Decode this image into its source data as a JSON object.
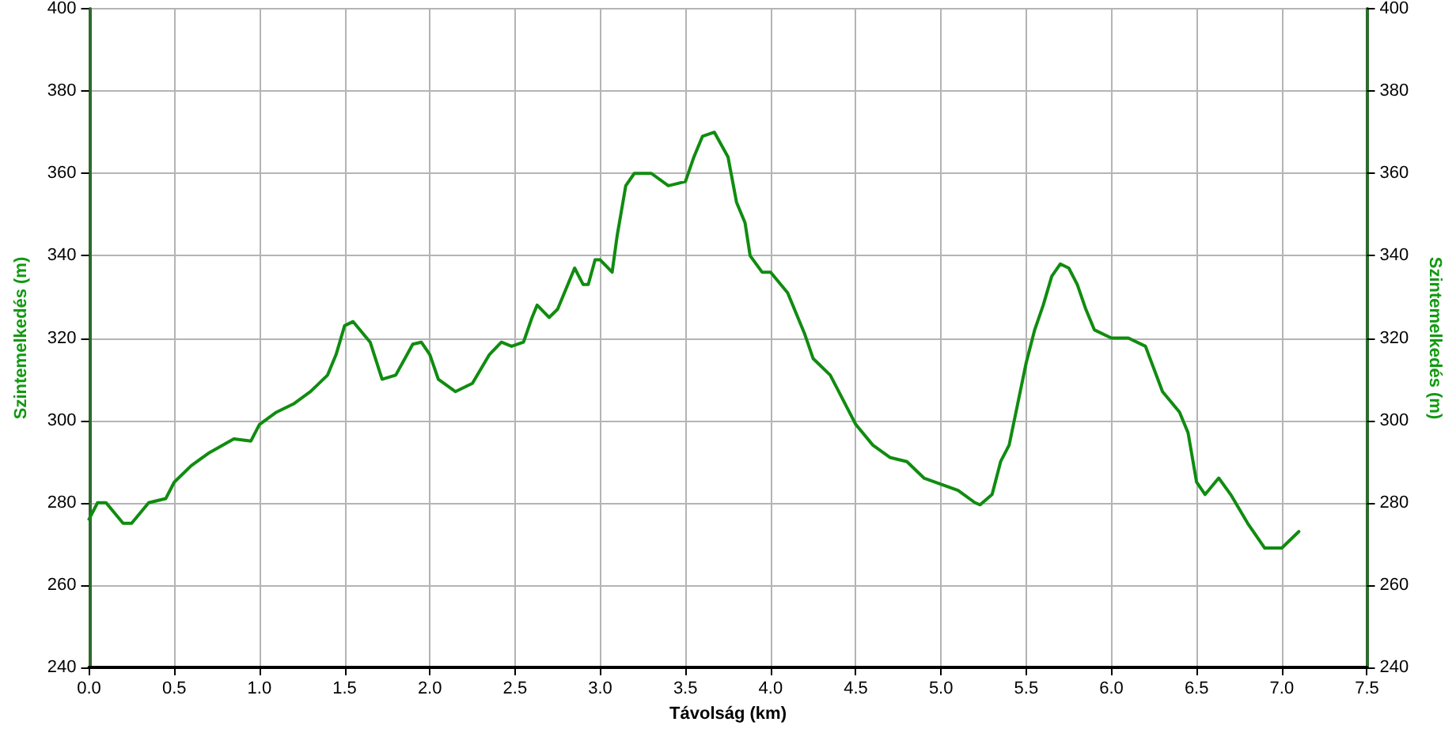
{
  "chart_data": {
    "type": "line",
    "xlabel": "Távolság (km)",
    "ylabel": "Szintemelkedés (m)",
    "y2label": "Szintemelkedés (m)",
    "xlim": [
      0,
      7.5
    ],
    "xticks": [
      {
        "value": 0,
        "label": "0.0"
      },
      {
        "value": 0.5,
        "label": "0.5"
      },
      {
        "value": 1,
        "label": "1.0"
      },
      {
        "value": 1.5,
        "label": "1.5"
      },
      {
        "value": 2,
        "label": "2.0"
      },
      {
        "value": 2.5,
        "label": "2.5"
      },
      {
        "value": 3,
        "label": "3.0"
      },
      {
        "value": 3.5,
        "label": "3.5"
      },
      {
        "value": 4,
        "label": "4.0"
      },
      {
        "value": 4.5,
        "label": "4.5"
      },
      {
        "value": 5,
        "label": "5.0"
      },
      {
        "value": 5.5,
        "label": "5.5"
      },
      {
        "value": 6,
        "label": "6.0"
      },
      {
        "value": 6.5,
        "label": "6.5"
      },
      {
        "value": 7,
        "label": "7.0"
      },
      {
        "value": 7.5,
        "label": "7.5"
      }
    ],
    "ylim": [
      240,
      400
    ],
    "yticks": [
      240,
      260,
      280,
      300,
      320,
      340,
      360,
      380,
      400
    ],
    "y2lim": [
      240,
      400
    ],
    "y2ticks": [
      240,
      260,
      280,
      300,
      320,
      340,
      360,
      380,
      400
    ],
    "grid": true,
    "marker": "none",
    "line_style": "solid",
    "series": [
      {
        "color": "#108c10",
        "x": [
          0,
          0.05,
          0.1,
          0.2,
          0.25,
          0.35,
          0.45,
          0.5,
          0.6,
          0.7,
          0.85,
          0.95,
          1.0,
          1.1,
          1.2,
          1.3,
          1.4,
          1.45,
          1.5,
          1.55,
          1.65,
          1.72,
          1.8,
          1.9,
          1.95,
          2.0,
          2.05,
          2.15,
          2.25,
          2.35,
          2.42,
          2.48,
          2.55,
          2.6,
          2.63,
          2.7,
          2.75,
          2.85,
          2.9,
          2.93,
          2.97,
          3.0,
          3.07,
          3.1,
          3.15,
          3.2,
          3.3,
          3.4,
          3.5,
          3.55,
          3.6,
          3.67,
          3.75,
          3.8,
          3.85,
          3.88,
          3.95,
          4.0,
          4.1,
          4.2,
          4.25,
          4.35,
          4.4,
          4.5,
          4.6,
          4.7,
          4.8,
          4.9,
          5.0,
          5.1,
          5.2,
          5.23,
          5.3,
          5.35,
          5.4,
          5.45,
          5.5,
          5.55,
          5.6,
          5.65,
          5.7,
          5.75,
          5.8,
          5.85,
          5.9,
          6.0,
          6.1,
          6.2,
          6.3,
          6.4,
          6.45,
          6.5,
          6.55,
          6.6,
          6.63,
          6.7,
          6.8,
          6.9,
          7.0,
          7.1
        ],
        "values": [
          276,
          280,
          280,
          275,
          275,
          280,
          281,
          285,
          289,
          292,
          295.5,
          295,
          299,
          302,
          304,
          307,
          311,
          316,
          323,
          324,
          319,
          310,
          311,
          318.5,
          319,
          316,
          310,
          307,
          309,
          316,
          319,
          318,
          319,
          325,
          328,
          325,
          327,
          337,
          333,
          333,
          339,
          339,
          336,
          345,
          357,
          360,
          360,
          357,
          358,
          364,
          369,
          370,
          364,
          353,
          348,
          340,
          336,
          336,
          331,
          321,
          315,
          311,
          307,
          299,
          294,
          291,
          290,
          286,
          284.5,
          283,
          280,
          279.5,
          282,
          290,
          294,
          304,
          314,
          322,
          328,
          335,
          338,
          337,
          333,
          327,
          322,
          320,
          320,
          318,
          307,
          302,
          297,
          285,
          282,
          284.5,
          286,
          282,
          275,
          269,
          269,
          273
        ]
      }
    ]
  }
}
